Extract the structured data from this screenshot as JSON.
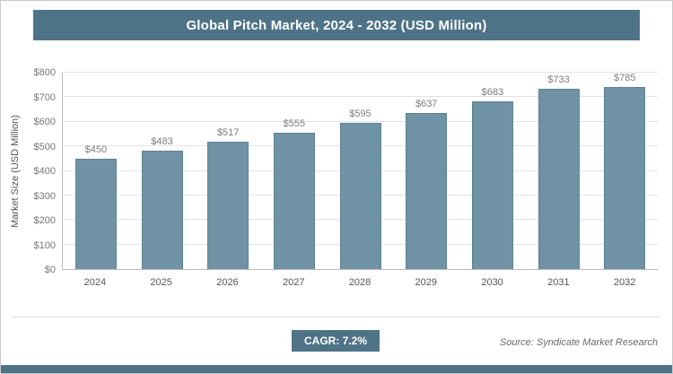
{
  "header": {
    "title": "Global Pitch Market, 2024 - 2032 (USD Million)"
  },
  "chart_data": {
    "type": "bar",
    "title": "Global Pitch Market, 2024 - 2032 (USD Million)",
    "categories": [
      "2024",
      "2025",
      "2026",
      "2027",
      "2028",
      "2029",
      "2030",
      "2031",
      "2032"
    ],
    "values": [
      450,
      483,
      517,
      555,
      595,
      637,
      683,
      733,
      785
    ],
    "value_labels": [
      "$450",
      "$483",
      "$517",
      "$555",
      "$595",
      "$637",
      "$683",
      "$733",
      "$785"
    ],
    "xlabel": "",
    "ylabel": "Market Size (USD Million)",
    "ylim": [
      0,
      800
    ],
    "yticks": [
      0,
      100,
      200,
      300,
      400,
      500,
      600,
      700,
      800
    ],
    "ytick_labels": [
      "$0",
      "$100",
      "$200",
      "$300",
      "$400",
      "$500",
      "$600",
      "$700",
      "$800"
    ],
    "grid": true,
    "legend": "none",
    "bar_color": "#6f93a4",
    "bar_border_color": "#5e8294"
  },
  "footer": {
    "cagr_label": "CAGR: 7.2%",
    "source": "Source: Syndicate Market Research"
  },
  "colors": {
    "banner": "#4e7386",
    "bar": "#6f93a4",
    "gridline": "#e3e3e3",
    "value_label": "#7d7d7d"
  }
}
